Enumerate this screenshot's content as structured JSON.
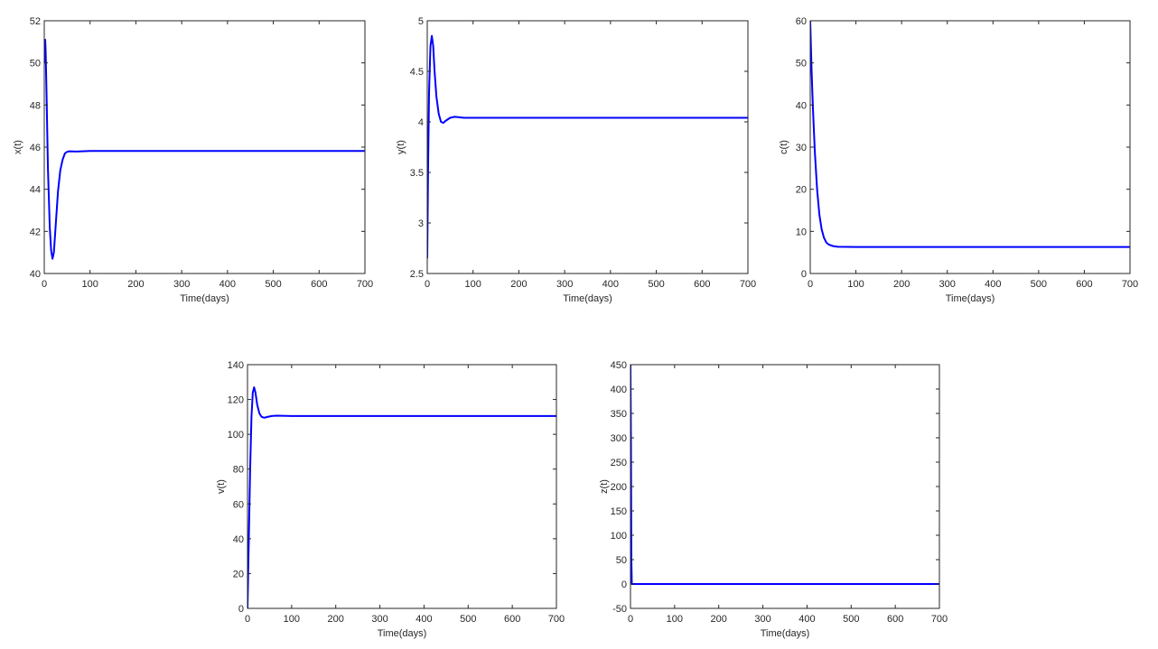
{
  "chart_data": [
    {
      "type": "line",
      "xlabel": "Time(days)",
      "ylabel": "x(t)",
      "xlim": [
        0,
        700
      ],
      "ylim": [
        40,
        52
      ],
      "xticks": [
        0,
        100,
        200,
        300,
        400,
        500,
        600,
        700
      ],
      "yticks": [
        40,
        42,
        44,
        46,
        48,
        50,
        52
      ],
      "grid": false,
      "color": "#0000ff",
      "points": [
        [
          0,
          50
        ],
        [
          1,
          50.8
        ],
        [
          2,
          51.1
        ],
        [
          3,
          50.6
        ],
        [
          5,
          48.5
        ],
        [
          8,
          45
        ],
        [
          12,
          42.2
        ],
        [
          15,
          41.1
        ],
        [
          18,
          40.7
        ],
        [
          21,
          41.0
        ],
        [
          25,
          42.3
        ],
        [
          30,
          43.9
        ],
        [
          35,
          44.9
        ],
        [
          40,
          45.4
        ],
        [
          45,
          45.7
        ],
        [
          50,
          45.78
        ],
        [
          55,
          45.8
        ],
        [
          70,
          45.79
        ],
        [
          100,
          45.82
        ],
        [
          700,
          45.82
        ]
      ]
    },
    {
      "type": "line",
      "xlabel": "Time(days)",
      "ylabel": "y(t)",
      "xlim": [
        0,
        700
      ],
      "ylim": [
        2.5,
        5
      ],
      "xticks": [
        0,
        100,
        200,
        300,
        400,
        500,
        600,
        700
      ],
      "yticks": [
        2.5,
        3,
        3.5,
        4,
        4.5,
        5
      ],
      "grid": false,
      "color": "#0000ff",
      "points": [
        [
          0,
          2.65
        ],
        [
          2,
          3.6
        ],
        [
          4,
          4.3
        ],
        [
          7,
          4.75
        ],
        [
          10,
          4.85
        ],
        [
          13,
          4.75
        ],
        [
          16,
          4.5
        ],
        [
          20,
          4.25
        ],
        [
          25,
          4.08
        ],
        [
          30,
          4.0
        ],
        [
          35,
          3.99
        ],
        [
          40,
          4.01
        ],
        [
          50,
          4.04
        ],
        [
          60,
          4.05
        ],
        [
          80,
          4.04
        ],
        [
          700,
          4.04
        ]
      ]
    },
    {
      "type": "line",
      "xlabel": "Time(days)",
      "ylabel": "c(t)",
      "xlim": [
        0,
        700
      ],
      "ylim": [
        0,
        60
      ],
      "xticks": [
        0,
        100,
        200,
        300,
        400,
        500,
        600,
        700
      ],
      "yticks": [
        0,
        10,
        20,
        30,
        40,
        50,
        60
      ],
      "grid": false,
      "color": "#0000ff",
      "points": [
        [
          0,
          60
        ],
        [
          3,
          48
        ],
        [
          6,
          39
        ],
        [
          10,
          29
        ],
        [
          15,
          20
        ],
        [
          20,
          14
        ],
        [
          25,
          10.5
        ],
        [
          30,
          8.5
        ],
        [
          35,
          7.4
        ],
        [
          40,
          6.9
        ],
        [
          50,
          6.5
        ],
        [
          60,
          6.35
        ],
        [
          100,
          6.3
        ],
        [
          700,
          6.3
        ]
      ]
    },
    {
      "type": "line",
      "xlabel": "Time(days)",
      "ylabel": "v(t)",
      "xlim": [
        0,
        700
      ],
      "ylim": [
        0,
        140
      ],
      "xticks": [
        0,
        100,
        200,
        300,
        400,
        500,
        600,
        700
      ],
      "yticks": [
        0,
        20,
        40,
        60,
        80,
        100,
        120,
        140
      ],
      "grid": false,
      "color": "#0000ff",
      "points": [
        [
          0,
          0
        ],
        [
          3,
          40
        ],
        [
          6,
          80
        ],
        [
          9,
          110
        ],
        [
          12,
          124
        ],
        [
          15,
          127
        ],
        [
          18,
          124
        ],
        [
          22,
          117
        ],
        [
          27,
          112
        ],
        [
          32,
          110
        ],
        [
          38,
          109.5
        ],
        [
          45,
          110
        ],
        [
          55,
          110.5
        ],
        [
          65,
          110.7
        ],
        [
          100,
          110.5
        ],
        [
          700,
          110.5
        ]
      ]
    },
    {
      "type": "line",
      "xlabel": "Time(days)",
      "ylabel": "z(t)",
      "xlim": [
        0,
        700
      ],
      "ylim": [
        -50,
        450
      ],
      "xticks": [
        0,
        100,
        200,
        300,
        400,
        500,
        600,
        700
      ],
      "yticks": [
        -50,
        0,
        50,
        100,
        150,
        200,
        250,
        300,
        350,
        400,
        450
      ],
      "grid": false,
      "color": "#0000ff",
      "points": [
        [
          0,
          450
        ],
        [
          1,
          300
        ],
        [
          2,
          50
        ],
        [
          3,
          0
        ],
        [
          700,
          0
        ]
      ]
    }
  ]
}
